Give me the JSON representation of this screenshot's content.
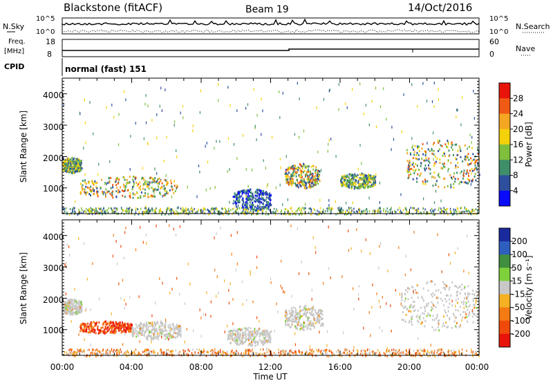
{
  "header": {
    "station": "Blackstone (fitACF)",
    "beam": "Beam 19",
    "date": "14/Oct/2016"
  },
  "summary_panels": {
    "nsky_label": "N.Sky",
    "nsearch_label": "N.Search",
    "counts_ticks": [
      "10^5",
      "10^0"
    ],
    "freq_label": [
      "Freq.",
      "[MHz]"
    ],
    "freq_ticks": [
      "18",
      "8"
    ],
    "nave_label": "Nave",
    "nave_ticks": [
      "60",
      "0"
    ],
    "cpid_label": "CPID",
    "cpid_value": "normal (fast) 151"
  },
  "chart_data": [
    {
      "type": "heatmap",
      "title": "",
      "ylabel": "Slant Range [km]",
      "xlabel": "",
      "y_ticks": [
        "4000",
        "3000",
        "2000",
        "1000"
      ],
      "ylim": [
        180,
        4500
      ],
      "xlim_hours": [
        0,
        24
      ],
      "colorbar": {
        "label": "Power [dB]",
        "ticks": [
          "28",
          "24",
          "20",
          "16",
          "12",
          "8",
          "4"
        ],
        "colors": [
          "#e8140a",
          "#f05a14",
          "#f5a623",
          "#f5d10a",
          "#7fbf3c",
          "#3f8f6a",
          "#2e4f9e",
          "#0a0aff"
        ]
      },
      "echo_regions": [
        {
          "t_start": 0.0,
          "t_end": 1.1,
          "range_low": 1500,
          "range_high": 2000,
          "level": "power-mid"
        },
        {
          "t_start": 1.0,
          "t_end": 6.6,
          "range_low": 700,
          "range_high": 1400,
          "level": "power-high"
        },
        {
          "t_start": 9.8,
          "t_end": 12.0,
          "range_low": 300,
          "range_high": 1000,
          "level": "power-low"
        },
        {
          "t_start": 12.8,
          "t_end": 14.8,
          "range_low": 1000,
          "range_high": 1800,
          "level": "power-high"
        },
        {
          "t_start": 16.0,
          "t_end": 18.0,
          "range_low": 1000,
          "range_high": 1500,
          "level": "power-mid"
        },
        {
          "t_start": 19.8,
          "t_end": 24.0,
          "range_low": 1000,
          "range_high": 2600,
          "level": "power-high"
        }
      ]
    },
    {
      "type": "heatmap",
      "title": "",
      "ylabel": "Slant Range [km]",
      "xlabel": "Time UT",
      "y_ticks": [
        "4000",
        "3000",
        "2000",
        "1000"
      ],
      "x_ticks": [
        "00:00",
        "04:00",
        "08:00",
        "12:00",
        "16:00",
        "20:00",
        "00:00"
      ],
      "ylim": [
        180,
        4500
      ],
      "xlim_hours": [
        0,
        24
      ],
      "colorbar": {
        "label": "Velocity [m s⁻¹]",
        "ticks": [
          "200",
          "100",
          "50",
          "15",
          "-15",
          "-50",
          "-100",
          "-200"
        ],
        "colors": [
          "#1a2a9e",
          "#2e5fbf",
          "#3f8f3f",
          "#7fd13c",
          "#c8c8c8",
          "#f5b123",
          "#f57a14",
          "#f04a0a",
          "#e8140a"
        ]
      },
      "echo_regions": [
        {
          "t_start": 0.0,
          "t_end": 1.1,
          "range_low": 1500,
          "range_high": 2000,
          "level": "velocity-zero"
        },
        {
          "t_start": 1.0,
          "t_end": 4.0,
          "range_low": 900,
          "range_high": 1300,
          "level": "velocity-strong-negative"
        },
        {
          "t_start": 4.0,
          "t_end": 6.8,
          "range_low": 700,
          "range_high": 1300,
          "level": "velocity-zero"
        },
        {
          "t_start": 9.5,
          "t_end": 12.0,
          "range_low": 500,
          "range_high": 1100,
          "level": "velocity-zero"
        },
        {
          "t_start": 12.8,
          "t_end": 15.0,
          "range_low": 1000,
          "range_high": 1800,
          "level": "velocity-zero"
        },
        {
          "t_start": 19.5,
          "t_end": 24.0,
          "range_low": 1000,
          "range_high": 2600,
          "level": "velocity-zero"
        }
      ]
    }
  ]
}
